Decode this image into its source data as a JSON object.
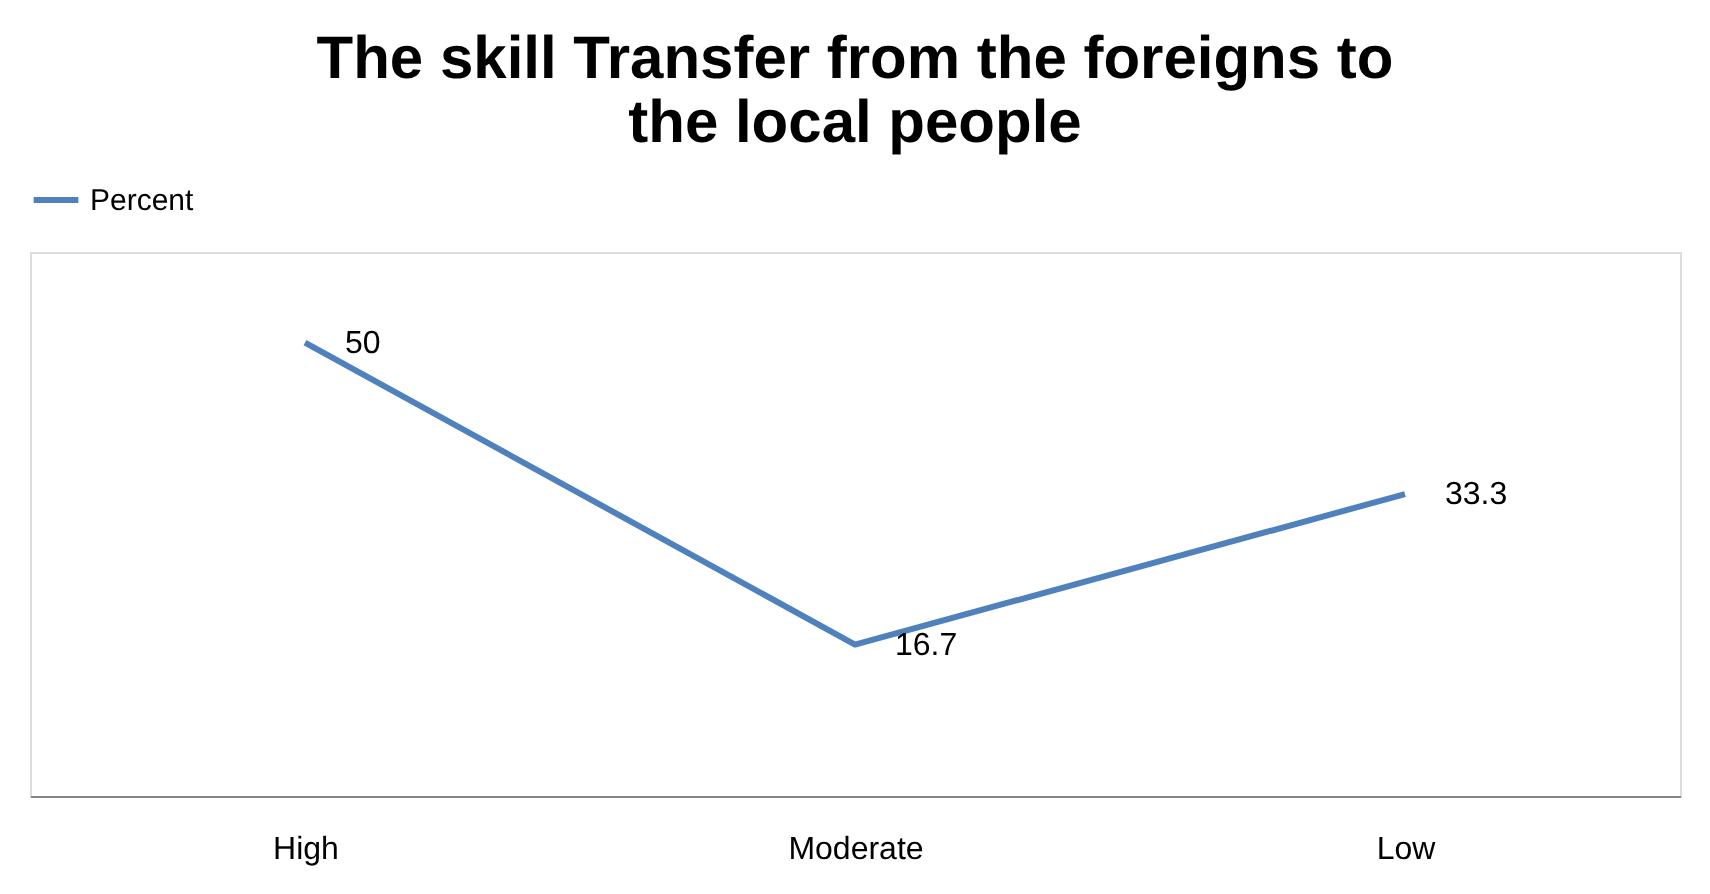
{
  "chart_data": {
    "type": "line",
    "title": [
      "The skill Transfer from the foreigns to",
      "the local people"
    ],
    "categories": [
      "High",
      "Moderate",
      "Low"
    ],
    "series": [
      {
        "name": "Percent",
        "color": "#4f81bd",
        "values": [
          50,
          16.7,
          33.3
        ]
      }
    ],
    "ylim": [
      0,
      60
    ],
    "tick_labels": "x",
    "data_labels": true,
    "legend": "top",
    "grid": false,
    "marker": "none",
    "line_style": "solid"
  }
}
